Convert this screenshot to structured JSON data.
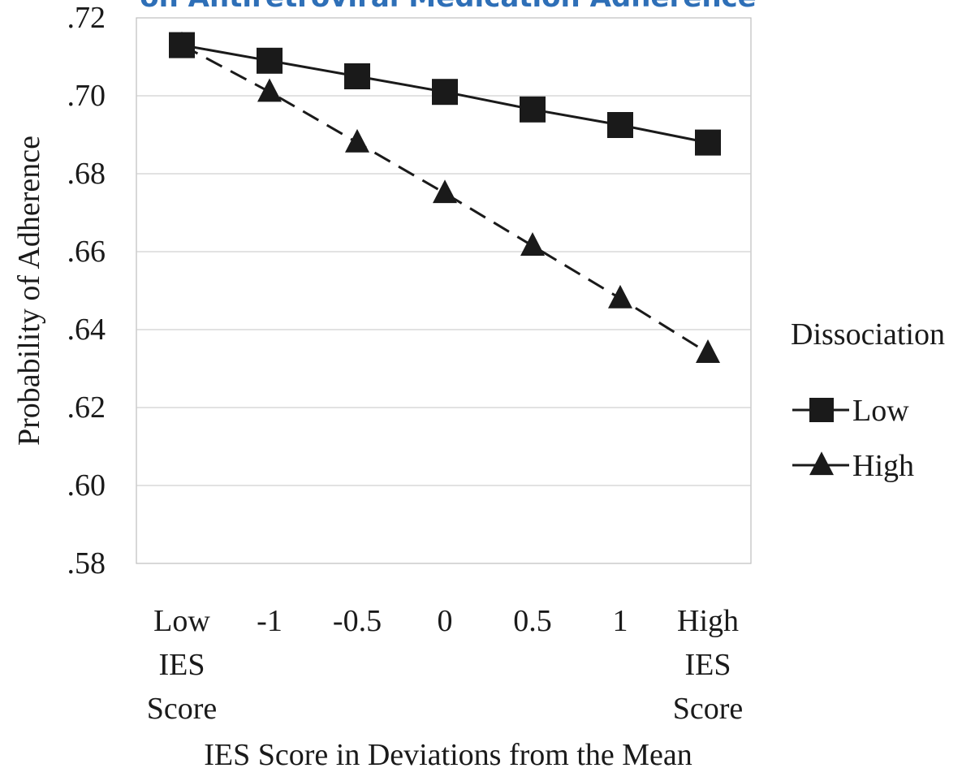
{
  "chart_data": {
    "type": "line",
    "title": "on Antiretroviral Medication Adherence",
    "xlabel": "IES Score in Deviations from the Mean",
    "ylabel": "Probability of Adherence",
    "categories": [
      [
        "Low",
        "IES",
        "Score"
      ],
      [
        "-1"
      ],
      [
        "-0.5"
      ],
      [
        "0"
      ],
      [
        "0.5"
      ],
      [
        "1"
      ],
      [
        "High",
        "IES",
        "Score"
      ]
    ],
    "y_ticks": [
      ".72",
      ".70",
      ".68",
      ".66",
      ".64",
      ".62",
      ".60",
      ".58"
    ],
    "ylim": [
      0.58,
      0.72
    ],
    "grid": true,
    "legend": {
      "title": "Dissociation",
      "placement": "right"
    },
    "series": [
      {
        "name": "Low",
        "marker": "square",
        "line": "solid",
        "values": [
          0.713,
          0.709,
          0.705,
          0.701,
          0.6965,
          0.6925,
          0.688
        ]
      },
      {
        "name": "High",
        "marker": "triangle",
        "line": "dashed",
        "values": [
          0.713,
          0.701,
          0.688,
          0.675,
          0.6615,
          0.648,
          0.634
        ]
      }
    ],
    "colors": {
      "line": "#1a1a1a",
      "grid": "#d0d0d0",
      "title": "#2e6fb7"
    }
  }
}
